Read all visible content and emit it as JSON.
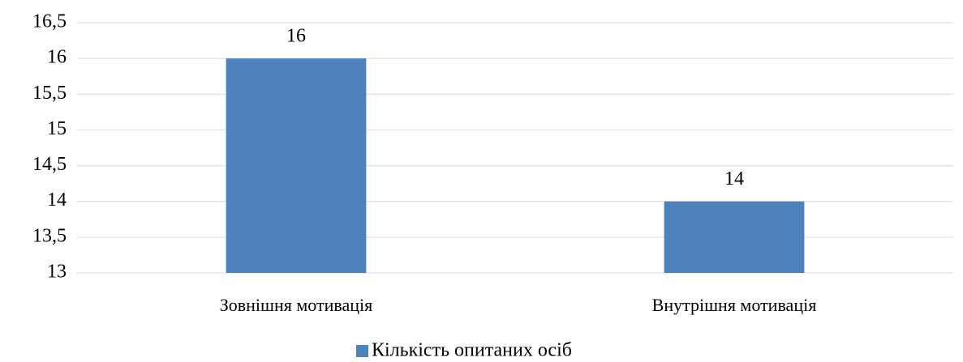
{
  "chart_data": {
    "type": "bar",
    "categories": [
      "Зовнішня мотивація",
      "Внутрішня мотивація"
    ],
    "series": [
      {
        "name": "Кількість опитаних осіб",
        "color": "#4f81bd",
        "values": [
          16,
          14
        ]
      }
    ],
    "ylim": [
      13,
      16.5
    ],
    "yticks": [
      13,
      {
        "value": 13.5,
        "label": "13,5"
      },
      14,
      {
        "value": 14.5,
        "label": "14,5"
      },
      15,
      {
        "value": 15.5,
        "label": "15,5"
      },
      16,
      {
        "value": 16.5,
        "label": "16,5"
      }
    ],
    "grid": true,
    "legend": "bottom"
  }
}
